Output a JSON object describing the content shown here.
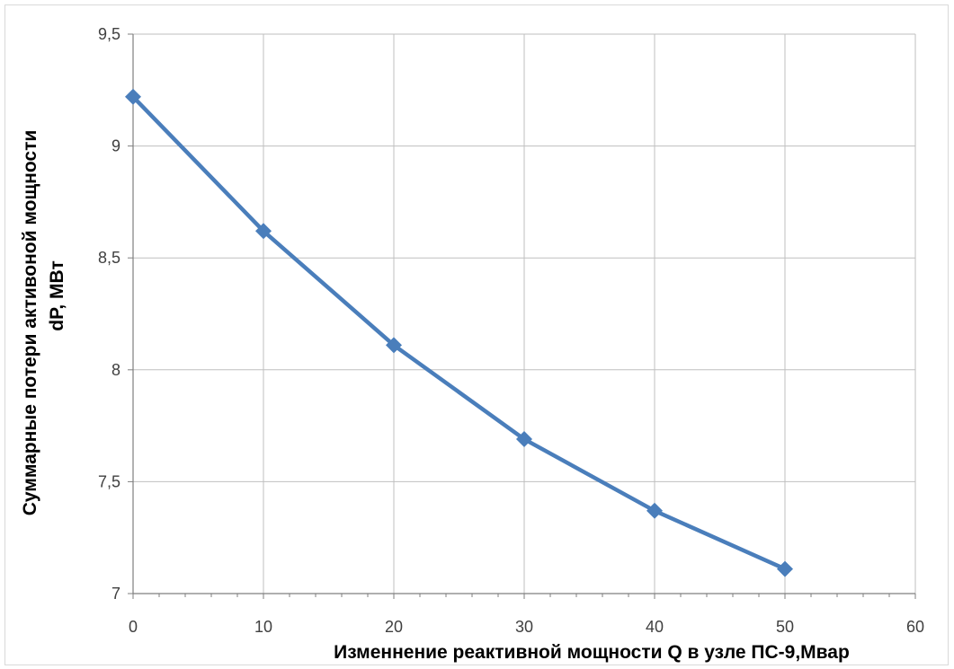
{
  "chart_data": {
    "type": "line",
    "x": [
      0,
      10,
      20,
      30,
      40,
      50
    ],
    "series": [
      {
        "values": [
          9.22,
          8.62,
          8.11,
          7.69,
          7.37,
          7.11
        ]
      }
    ],
    "xlabel": "Изменнение реактивной мощности Q в узле ПС-9,Мвар",
    "ylabel_line1": "Суммарные потери активоной мощности",
    "ylabel_line2": "dP, МВт",
    "xlim": [
      0,
      60
    ],
    "ylim": [
      7,
      9.5
    ],
    "x_ticks": [
      "0",
      "10",
      "20",
      "30",
      "40",
      "50",
      "60"
    ],
    "y_ticks": [
      "7",
      "7,5",
      "8",
      "8,5",
      "9",
      "9,5"
    ],
    "grid": true,
    "legend": "none",
    "colors": {
      "series": "#4a7ebb",
      "grid": "#bfbfbf",
      "axis": "#7f7f7f"
    },
    "marker": "diamond"
  }
}
